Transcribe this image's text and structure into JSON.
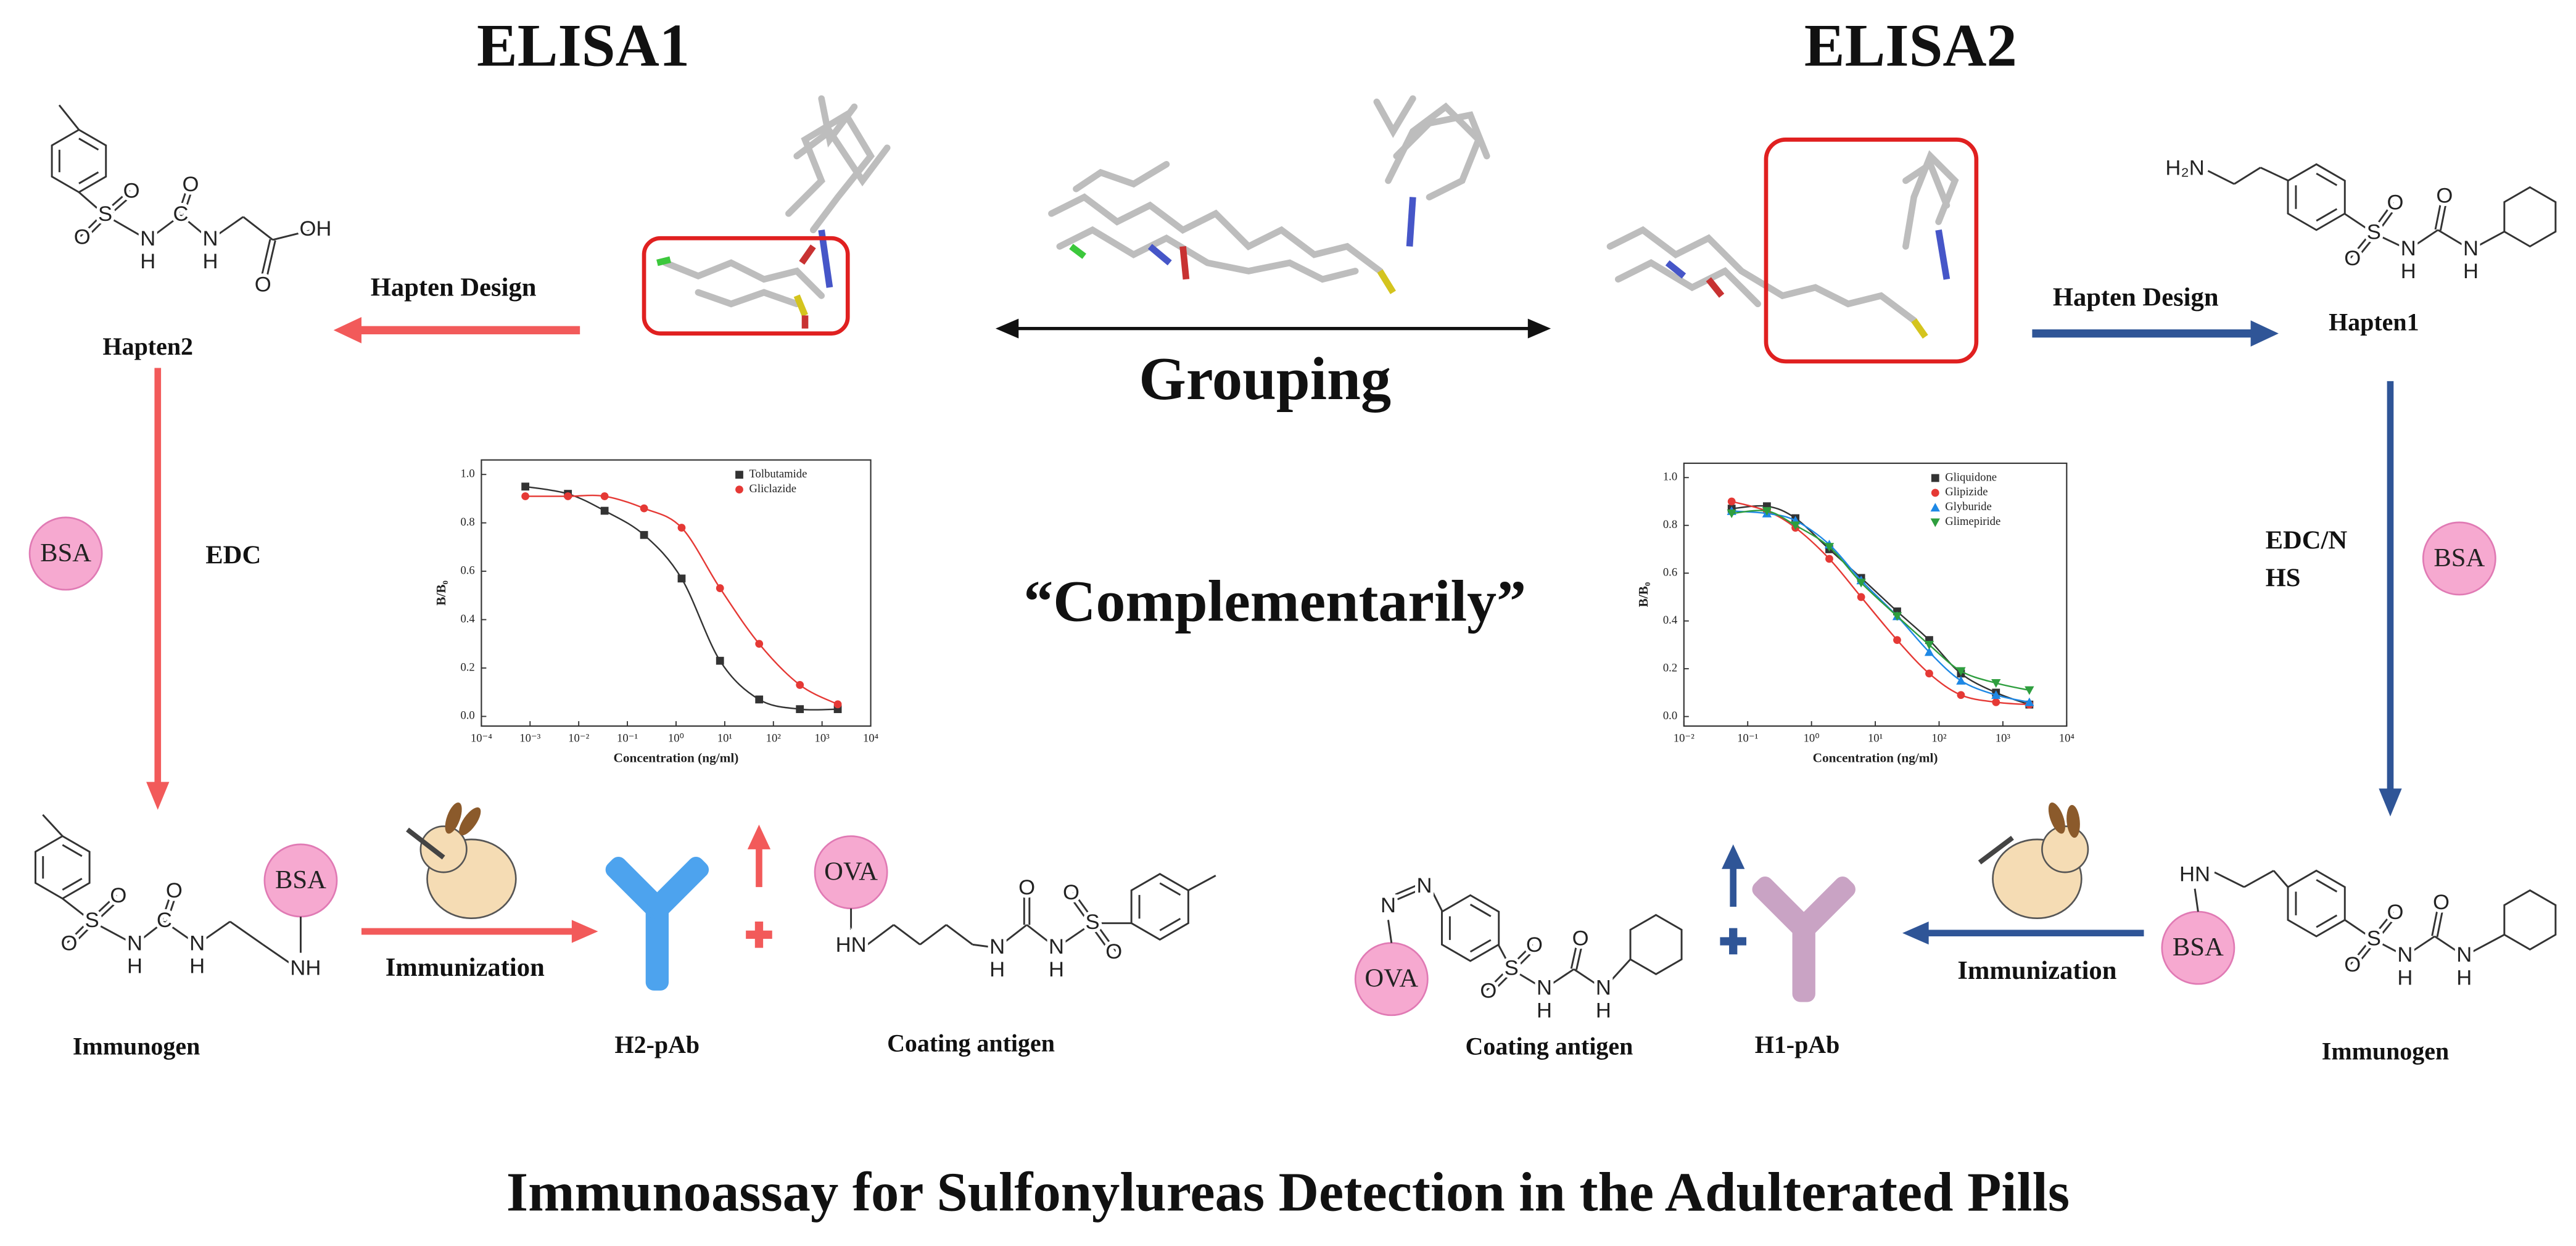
{
  "titles": {
    "left": "ELISA1",
    "right": "ELISA2",
    "bottom": "Immunoassay for Sulfonylureas Detection in the Adulterated Pills"
  },
  "center": {
    "grouping": "Grouping",
    "complementarily": "“Complementarily”"
  },
  "left": {
    "hapten_design": "Hapten Design",
    "hapten": "Hapten2",
    "bsa_circle": "BSA",
    "edc": "EDC",
    "immunogen_bsa": "BSA",
    "immunogen": "Immunogen",
    "immunization": "Immunization",
    "antibody": "H2-pAb",
    "ova": "OVA",
    "coating": "Coating antigen"
  },
  "right": {
    "hapten_design": "Hapten Design",
    "hapten": "Hapten1",
    "bsa_circle": "BSA",
    "edc": [
      "EDC/N",
      "HS"
    ],
    "immunogen_bsa": "BSA",
    "immunogen": "Immunogen",
    "immunization": "Immunization",
    "antibody": "H1-pAb",
    "ova": "OVA",
    "coating": "Coating antigen"
  },
  "molecules": {
    "hapten2": [
      "S",
      "O",
      "O",
      "N",
      "H",
      "C",
      "O",
      "N",
      "H",
      "O",
      "OH"
    ],
    "hapten1": [
      "H₂N",
      "S",
      "O",
      "O",
      "N",
      "H",
      "O",
      "N",
      "H"
    ],
    "immunogen_left": [
      "S",
      "O",
      "O",
      "N",
      "H",
      "C",
      "O",
      "N",
      "H",
      "NH"
    ],
    "coating_left": [
      "HN",
      "N",
      "H",
      "O",
      "N",
      "H",
      "S",
      "O",
      "O"
    ],
    "coating_right": [
      "N",
      "N",
      "S",
      "O",
      "O",
      "N",
      "H",
      "O",
      "N",
      "H"
    ],
    "immunogen_right": [
      "HN",
      "S",
      "O",
      "O",
      "N",
      "H",
      "O",
      "N",
      "H"
    ]
  },
  "charts": [
    {
      "type": "scatter",
      "x_label": "Concentration (ng/ml)",
      "y_label": "B/B₀",
      "log_x": true,
      "fit_curve": true,
      "xlim": [
        0.0001,
        10000
      ],
      "ylim": [
        -0.04,
        1.06
      ],
      "xticks": [
        {
          "value": 0.0001,
          "label": "10⁻⁴"
        },
        {
          "value": 0.001,
          "label": "10⁻³"
        },
        {
          "value": 0.01,
          "label": "10⁻²"
        },
        {
          "value": 0.1,
          "label": "10⁻¹"
        },
        {
          "value": 1,
          "label": "10⁰"
        },
        {
          "value": 10,
          "label": "10¹"
        },
        {
          "value": 100,
          "label": "10²"
        },
        {
          "value": 1000,
          "label": "10³"
        },
        {
          "value": 10000,
          "label": "10⁴"
        }
      ],
      "yticks": [
        {
          "value": 0,
          "label": "0.0"
        },
        {
          "value": 0.2,
          "label": "0.2"
        },
        {
          "value": 0.4,
          "label": "0.4"
        },
        {
          "value": 0.6,
          "label": "0.6"
        },
        {
          "value": 0.8,
          "label": "0.8"
        },
        {
          "value": 1,
          "label": "1.0"
        }
      ],
      "x": [
        0.0008,
        0.006,
        0.034,
        0.22,
        1.3,
        8,
        51,
        350,
        2100
      ],
      "series": [
        {
          "name": "Tolbutamide",
          "color": "#333333",
          "marker": "square",
          "values": [
            0.95,
            0.92,
            0.85,
            0.75,
            0.57,
            0.23,
            0.07,
            0.03,
            0.03
          ]
        },
        {
          "name": "Gliclazide",
          "color": "#e53935",
          "marker": "circle",
          "values": [
            0.91,
            0.91,
            0.91,
            0.86,
            0.78,
            0.53,
            0.3,
            0.13,
            0.05
          ]
        }
      ]
    },
    {
      "type": "scatter",
      "x_label": "Concentration (ng/ml)",
      "y_label": "B/B₀",
      "log_x": true,
      "fit_curve": true,
      "xlim": [
        0.01,
        10000
      ],
      "ylim": [
        -0.04,
        1.06
      ],
      "xticks": [
        {
          "value": 0.01,
          "label": "10⁻²"
        },
        {
          "value": 0.1,
          "label": "10⁻¹"
        },
        {
          "value": 1,
          "label": "10⁰"
        },
        {
          "value": 10,
          "label": "10¹"
        },
        {
          "value": 100,
          "label": "10²"
        },
        {
          "value": 1000,
          "label": "10³"
        },
        {
          "value": 10000,
          "label": "10⁴"
        }
      ],
      "yticks": [
        {
          "value": 0,
          "label": "0.0"
        },
        {
          "value": 0.2,
          "label": "0.2"
        },
        {
          "value": 0.4,
          "label": "0.4"
        },
        {
          "value": 0.6,
          "label": "0.6"
        },
        {
          "value": 0.8,
          "label": "0.8"
        },
        {
          "value": 1,
          "label": "1.0"
        }
      ],
      "x": [
        0.056,
        0.2,
        0.56,
        1.9,
        6,
        22,
        70,
        220,
        780,
        2600
      ],
      "series": [
        {
          "name": "Gliquidone",
          "color": "#333333",
          "marker": "square",
          "values": [
            0.87,
            0.88,
            0.83,
            0.7,
            0.58,
            0.44,
            0.32,
            0.18,
            0.1,
            0.05
          ]
        },
        {
          "name": "Glipizide",
          "color": "#e53935",
          "marker": "circle",
          "values": [
            0.9,
            0.86,
            0.79,
            0.66,
            0.5,
            0.32,
            0.18,
            0.09,
            0.06,
            0.05
          ]
        },
        {
          "name": "Glyburide",
          "color": "#1e88e5",
          "marker": "triangle",
          "values": [
            0.86,
            0.85,
            0.82,
            0.72,
            0.57,
            0.42,
            0.27,
            0.15,
            0.09,
            0.06
          ]
        },
        {
          "name": "Glimepiride",
          "color": "#2e9e3e",
          "marker": "triangle-down",
          "values": [
            0.85,
            0.86,
            0.8,
            0.71,
            0.56,
            0.42,
            0.3,
            0.19,
            0.14,
            0.11
          ]
        }
      ]
    }
  ]
}
